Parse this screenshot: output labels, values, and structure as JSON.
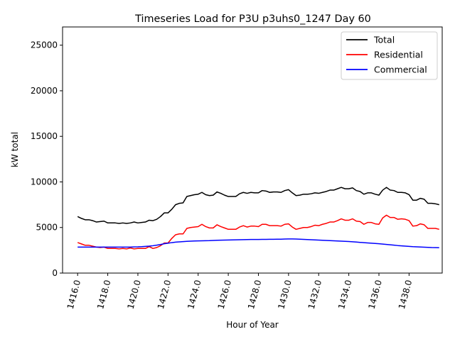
{
  "chart_data": {
    "type": "line",
    "title": "Timeseries Load for P3U p3uhs0_1247  Day 60",
    "xlabel": "Hour of Year",
    "ylabel": "kW total",
    "xlim": [
      1415.0,
      1440.2
    ],
    "ylim": [
      0,
      27000
    ],
    "x_ticks": [
      1416,
      1418,
      1420,
      1422,
      1424,
      1426,
      1428,
      1430,
      1432,
      1434,
      1436,
      1438
    ],
    "x_tick_labels": [
      "1416.0",
      "1418.0",
      "1420.0",
      "1422.0",
      "1424.0",
      "1426.0",
      "1428.0",
      "1430.0",
      "1432.0",
      "1434.0",
      "1436.0",
      "1438.0"
    ],
    "y_ticks": [
      0,
      5000,
      10000,
      15000,
      20000,
      25000
    ],
    "y_tick_labels": [
      "0",
      "5000",
      "10000",
      "15000",
      "20000",
      "25000"
    ],
    "grid": false,
    "legend_position": "top-right",
    "x_start": 1416.0,
    "x_step": 0.25,
    "series": [
      {
        "name": "Total",
        "color": "#000000",
        "values": [
          6200,
          6000,
          5850,
          5850,
          5750,
          5600,
          5650,
          5700,
          5500,
          5500,
          5500,
          5450,
          5500,
          5450,
          5500,
          5600,
          5500,
          5550,
          5600,
          5800,
          5750,
          5900,
          6200,
          6600,
          6600,
          7000,
          7500,
          7650,
          7700,
          8400,
          8500,
          8600,
          8650,
          8850,
          8600,
          8500,
          8550,
          8900,
          8750,
          8550,
          8400,
          8400,
          8400,
          8700,
          8850,
          8750,
          8850,
          8800,
          8800,
          9050,
          9000,
          8850,
          8900,
          8900,
          8850,
          9050,
          9150,
          8800,
          8500,
          8550,
          8650,
          8650,
          8700,
          8800,
          8750,
          8850,
          8950,
          9100,
          9100,
          9250,
          9400,
          9250,
          9250,
          9350,
          9050,
          8950,
          8650,
          8800,
          8800,
          8650,
          8550,
          9100,
          9400,
          9100,
          9050,
          8850,
          8850,
          8800,
          8600,
          8000,
          8000,
          8200,
          8100,
          7650,
          7650,
          7600,
          7500
        ]
      },
      {
        "name": "Residential",
        "color": "#ff0000",
        "values": [
          3350,
          3200,
          3050,
          3050,
          2950,
          2850,
          2800,
          2850,
          2700,
          2700,
          2700,
          2650,
          2700,
          2650,
          2750,
          2650,
          2700,
          2700,
          2700,
          2900,
          2700,
          2800,
          3000,
          3300,
          3300,
          3800,
          4200,
          4300,
          4300,
          4900,
          5000,
          5050,
          5100,
          5350,
          5100,
          4950,
          4950,
          5300,
          5100,
          4950,
          4800,
          4800,
          4800,
          5050,
          5200,
          5050,
          5150,
          5150,
          5100,
          5350,
          5350,
          5200,
          5200,
          5200,
          5150,
          5350,
          5400,
          5050,
          4800,
          4900,
          5000,
          5000,
          5100,
          5250,
          5200,
          5350,
          5450,
          5600,
          5600,
          5750,
          5950,
          5800,
          5800,
          5950,
          5700,
          5650,
          5350,
          5550,
          5550,
          5400,
          5350,
          6050,
          6350,
          6100,
          6100,
          5900,
          5950,
          5900,
          5750,
          5150,
          5200,
          5400,
          5300,
          4900,
          4900,
          4900,
          4800
        ]
      },
      {
        "name": "Commercial",
        "color": "#0000ff",
        "values": [
          2850,
          2850,
          2850,
          2850,
          2850,
          2850,
          2850,
          2850,
          2850,
          2850,
          2850,
          2850,
          2850,
          2850,
          2850,
          2870,
          2880,
          2900,
          2930,
          2960,
          3000,
          3060,
          3130,
          3220,
          3280,
          3340,
          3390,
          3420,
          3450,
          3480,
          3500,
          3520,
          3530,
          3540,
          3550,
          3560,
          3580,
          3600,
          3610,
          3620,
          3630,
          3640,
          3650,
          3660,
          3670,
          3680,
          3690,
          3690,
          3690,
          3700,
          3700,
          3710,
          3710,
          3720,
          3720,
          3730,
          3740,
          3740,
          3730,
          3720,
          3700,
          3680,
          3660,
          3640,
          3620,
          3600,
          3580,
          3560,
          3540,
          3520,
          3500,
          3480,
          3460,
          3430,
          3400,
          3370,
          3340,
          3310,
          3280,
          3250,
          3220,
          3180,
          3140,
          3100,
          3060,
          3020,
          2990,
          2960,
          2930,
          2900,
          2880,
          2860,
          2840,
          2820,
          2800,
          2790,
          2780
        ]
      }
    ]
  }
}
